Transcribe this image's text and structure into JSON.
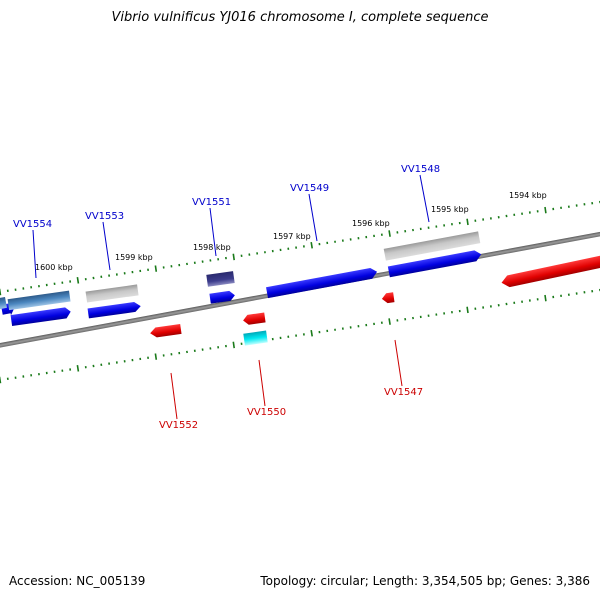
{
  "title": "Vibrio vulnificus YJ016 chromosome I, complete sequence",
  "footer": {
    "accession": "Accession: NC_005139",
    "topology": "Topology: circular; Length: 3,354,505 bp; Genes: 3,386"
  },
  "kbp_labels": [
    "1600 kbp",
    "1599 kbp",
    "1598 kbp",
    "1597 kbp",
    "1596 kbp",
    "1595 kbp",
    "1594 kbp"
  ],
  "gene_labels": {
    "forward": [
      "VV1554",
      "VV1553",
      "VV1551",
      "VV1549",
      "VV1548"
    ],
    "reverse": [
      "VV1552",
      "VV1550",
      "VV1547"
    ]
  },
  "colors": {
    "forward_label": "#0000cc",
    "reverse_label": "#cc0000",
    "forward_gene": "#0000ee",
    "reverse_gene": "#ee0000",
    "tick": "#1a7a1a",
    "backbone": "#808080"
  }
}
